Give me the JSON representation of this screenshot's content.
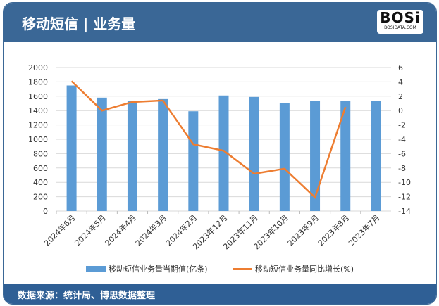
{
  "header": {
    "title": "移动短信 | 业务量",
    "logo": "BOSi",
    "logo_sub": "BOSIDATA.COM"
  },
  "footer": {
    "source": "数据来源：统计局、博思数据整理"
  },
  "colors": {
    "bar": "#5b9bd5",
    "line": "#ed7d31",
    "header": "#3a6796"
  },
  "chart_data": {
    "type": "bar+line",
    "categories": [
      "2024年6月",
      "2024年5月",
      "2024年4月",
      "2024年3月",
      "2024年2月",
      "2023年12月",
      "2023年11月",
      "2023年10月",
      "2023年9月",
      "2023年8月",
      "2023年7月"
    ],
    "series": [
      {
        "name": "移动短信业务量当期值(亿条)",
        "type": "bar",
        "axis": "left",
        "values": [
          1750,
          1580,
          1530,
          1560,
          1390,
          1610,
          1590,
          1500,
          1530,
          1530,
          1530
        ]
      },
      {
        "name": "移动短信业务量同比增长(%)",
        "type": "line",
        "axis": "right",
        "values": [
          4.1,
          0.0,
          1.2,
          1.4,
          -4.7,
          -5.6,
          -8.8,
          -8.1,
          -12.1,
          0.5,
          null
        ]
      }
    ],
    "ylim": [
      0,
      2000
    ],
    "yticks": [
      0,
      200,
      400,
      600,
      800,
      1000,
      1200,
      1400,
      1600,
      1800,
      2000
    ],
    "y2lim": [
      -14,
      6
    ],
    "y2ticks": [
      -14,
      -12,
      -10,
      -8,
      -6,
      -4,
      -2,
      0,
      2,
      4,
      6
    ],
    "grid": true,
    "legend": "bottom"
  }
}
